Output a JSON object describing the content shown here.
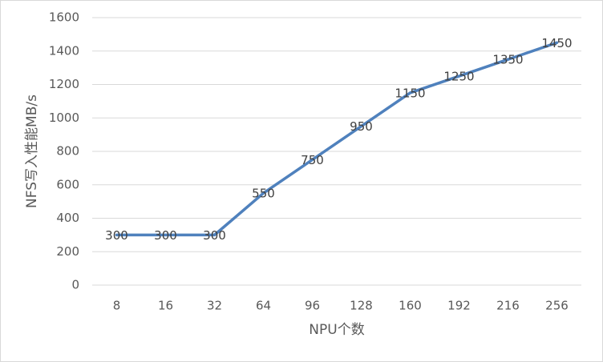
{
  "chart_data": {
    "type": "line",
    "xlabel": "NPU个数",
    "ylabel": "NFS写入性能MB/s",
    "categories": [
      "8",
      "16",
      "32",
      "64",
      "96",
      "128",
      "160",
      "192",
      "216",
      "256"
    ],
    "values": [
      300,
      300,
      300,
      550,
      750,
      950,
      1150,
      1250,
      1350,
      1450
    ],
    "color": "#4f81bd",
    "ylim": [
      0,
      1600
    ],
    "yticks": [
      0,
      200,
      400,
      600,
      800,
      1000,
      1200,
      1400,
      1600
    ],
    "grid": true,
    "data_labels": true
  }
}
